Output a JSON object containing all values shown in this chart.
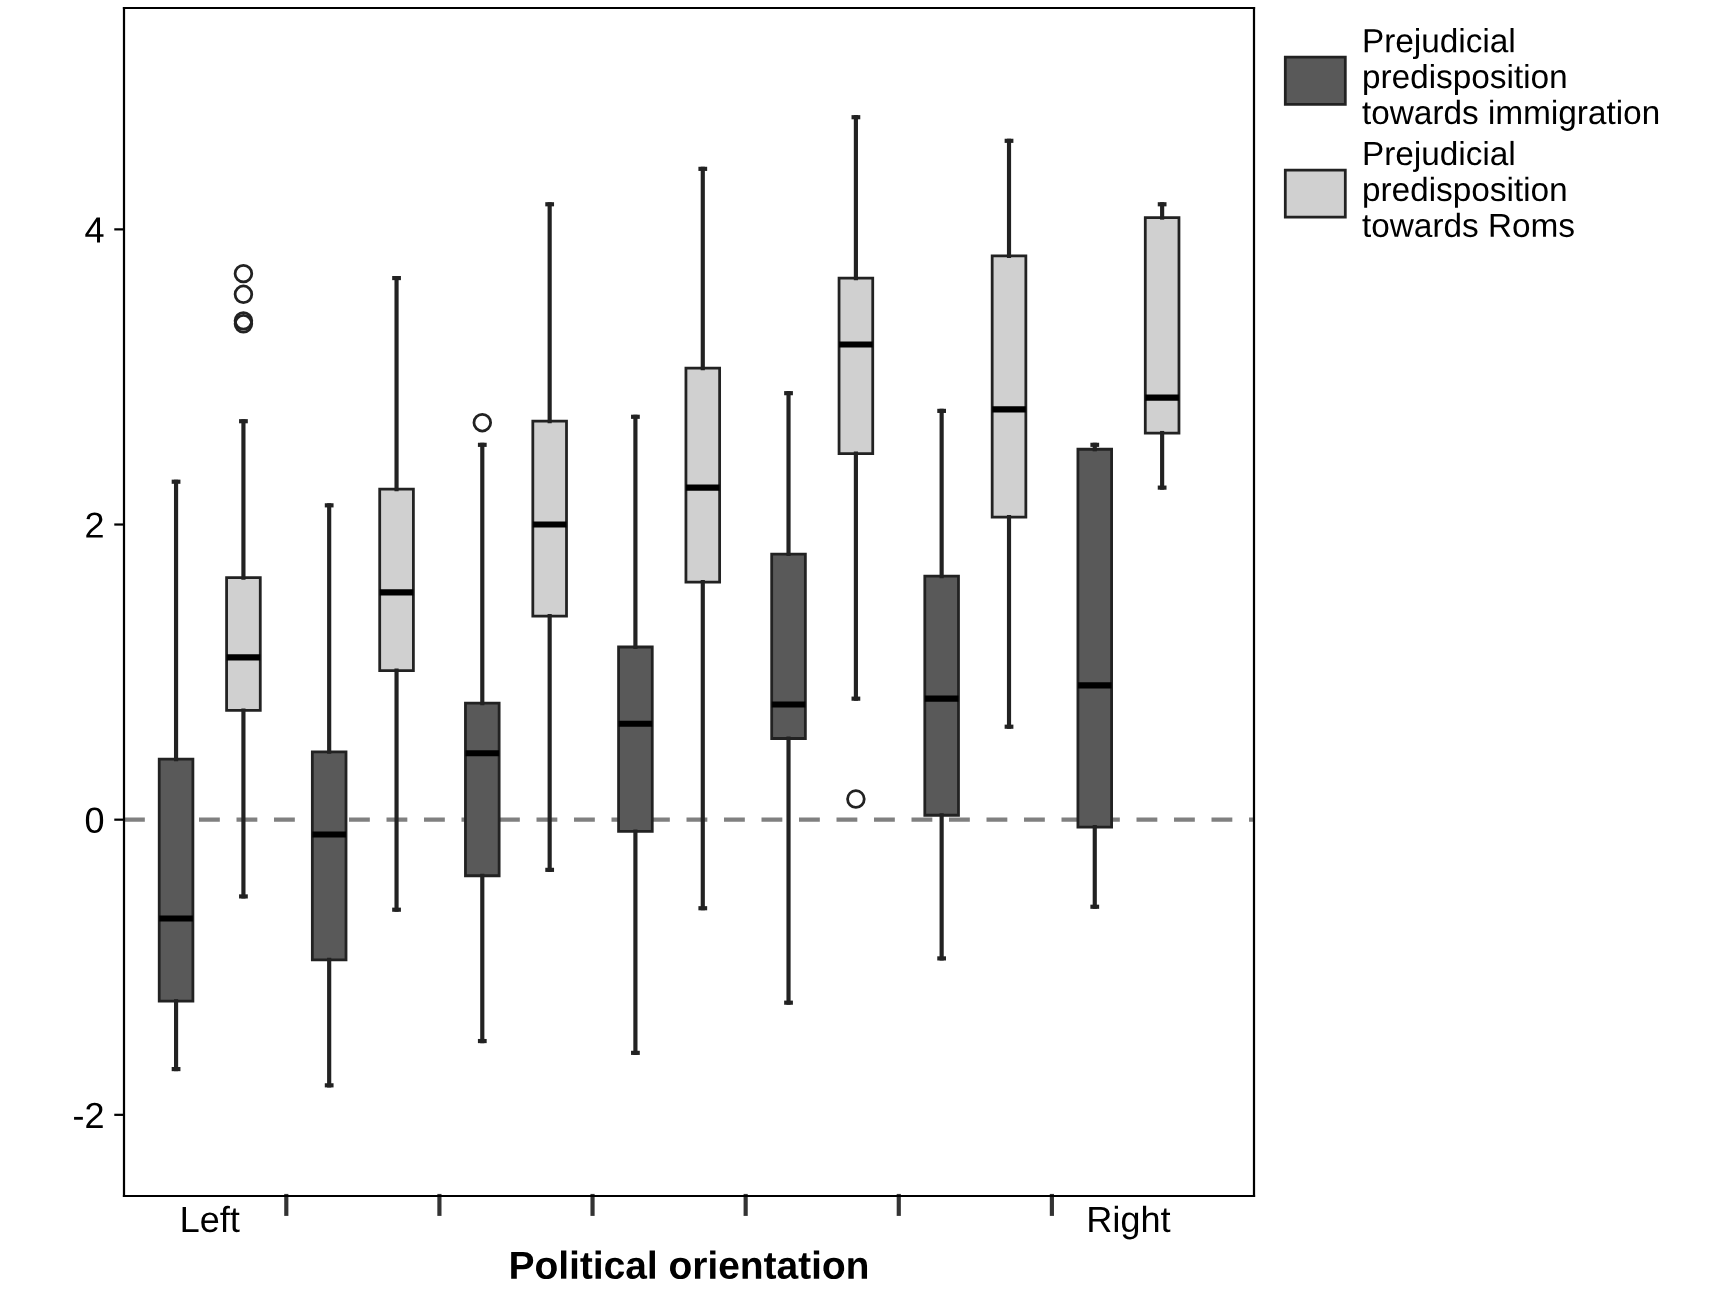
{
  "chart_data": {
    "type": "box",
    "xlabel": "Political orientation",
    "categories": [
      "Left",
      null,
      null,
      null,
      null,
      null,
      "Right"
    ],
    "ylim": [
      -2.55,
      5.5
    ],
    "yticks": [
      -2,
      0,
      2,
      4
    ],
    "grid": false,
    "legend": "top right",
    "ref_lines": [
      {
        "axis": "y",
        "value": 0,
        "color": "#808080",
        "line_style": "dashed"
      }
    ],
    "series": [
      {
        "name": "Prejudicial predisposition towards immigration",
        "color": "#595959",
        "boxes": [
          {
            "low": -1.69,
            "q1": -1.23,
            "median": -0.67,
            "q3": 0.41,
            "high": 2.29
          },
          {
            "low": -1.8,
            "q1": -0.95,
            "median": -0.1,
            "q3": 0.46,
            "high": 2.13
          },
          {
            "low": -1.5,
            "q1": -0.38,
            "median": 0.45,
            "q3": 0.79,
            "high": 2.54,
            "outliers": [
              2.69
            ]
          },
          {
            "low": -1.58,
            "q1": -0.08,
            "median": 0.65,
            "q3": 1.17,
            "high": 2.73
          },
          {
            "low": -1.24,
            "q1": 0.55,
            "median": 0.78,
            "q3": 1.8,
            "high": 2.89
          },
          {
            "low": -0.94,
            "q1": 0.03,
            "median": 0.82,
            "q3": 1.65,
            "high": 2.77
          },
          {
            "low": -0.59,
            "q1": -0.05,
            "median": 0.91,
            "q3": 2.51,
            "high": 2.54
          }
        ]
      },
      {
        "name": "Prejudicial predisposition towards Roms",
        "color": "#d0d0d0",
        "boxes": [
          {
            "low": -0.52,
            "q1": 0.74,
            "median": 1.1,
            "q3": 1.64,
            "high": 2.7,
            "outliers": [
              3.7,
              3.56,
              3.38,
              3.36
            ]
          },
          {
            "low": -0.61,
            "q1": 1.01,
            "median": 1.54,
            "q3": 2.24,
            "high": 3.67
          },
          {
            "low": -0.34,
            "q1": 1.38,
            "median": 2.0,
            "q3": 2.7,
            "high": 4.17
          },
          {
            "low": -0.6,
            "q1": 1.61,
            "median": 2.25,
            "q3": 3.06,
            "high": 4.41
          },
          {
            "low": 0.82,
            "q1": 2.48,
            "median": 3.22,
            "q3": 3.67,
            "high": 4.76,
            "outliers": [
              0.14
            ]
          },
          {
            "low": 0.63,
            "q1": 2.05,
            "median": 2.78,
            "q3": 3.82,
            "high": 4.6
          },
          {
            "low": 2.25,
            "q1": 2.62,
            "median": 2.86,
            "q3": 4.08,
            "high": 4.17
          }
        ]
      }
    ]
  }
}
